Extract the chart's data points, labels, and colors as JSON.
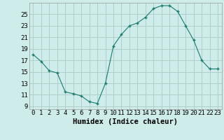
{
  "x": [
    0,
    1,
    2,
    3,
    4,
    5,
    6,
    7,
    8,
    9,
    10,
    11,
    12,
    13,
    14,
    15,
    16,
    17,
    18,
    19,
    20,
    21,
    22,
    23
  ],
  "y": [
    18.0,
    16.8,
    15.2,
    14.8,
    11.5,
    11.2,
    10.8,
    9.8,
    9.5,
    13.0,
    19.5,
    21.5,
    23.0,
    23.5,
    24.5,
    26.0,
    26.5,
    26.5,
    25.5,
    23.0,
    20.5,
    17.0,
    15.5,
    15.5
  ],
  "xlabel": "Humidex (Indice chaleur)",
  "xlim": [
    -0.5,
    23.5
  ],
  "ylim": [
    8.5,
    27.0
  ],
  "yticks": [
    9,
    11,
    13,
    15,
    17,
    19,
    21,
    23,
    25
  ],
  "xticks": [
    0,
    1,
    2,
    3,
    4,
    5,
    6,
    7,
    8,
    9,
    10,
    11,
    12,
    13,
    14,
    15,
    16,
    17,
    18,
    19,
    20,
    21,
    22,
    23
  ],
  "line_color": "#1a7a6e",
  "marker_color": "#1a7a6e",
  "bg_color": "#ceecea",
  "grid_color": "#b0ceca",
  "xlabel_fontsize": 7.5,
  "tick_fontsize": 6.5
}
